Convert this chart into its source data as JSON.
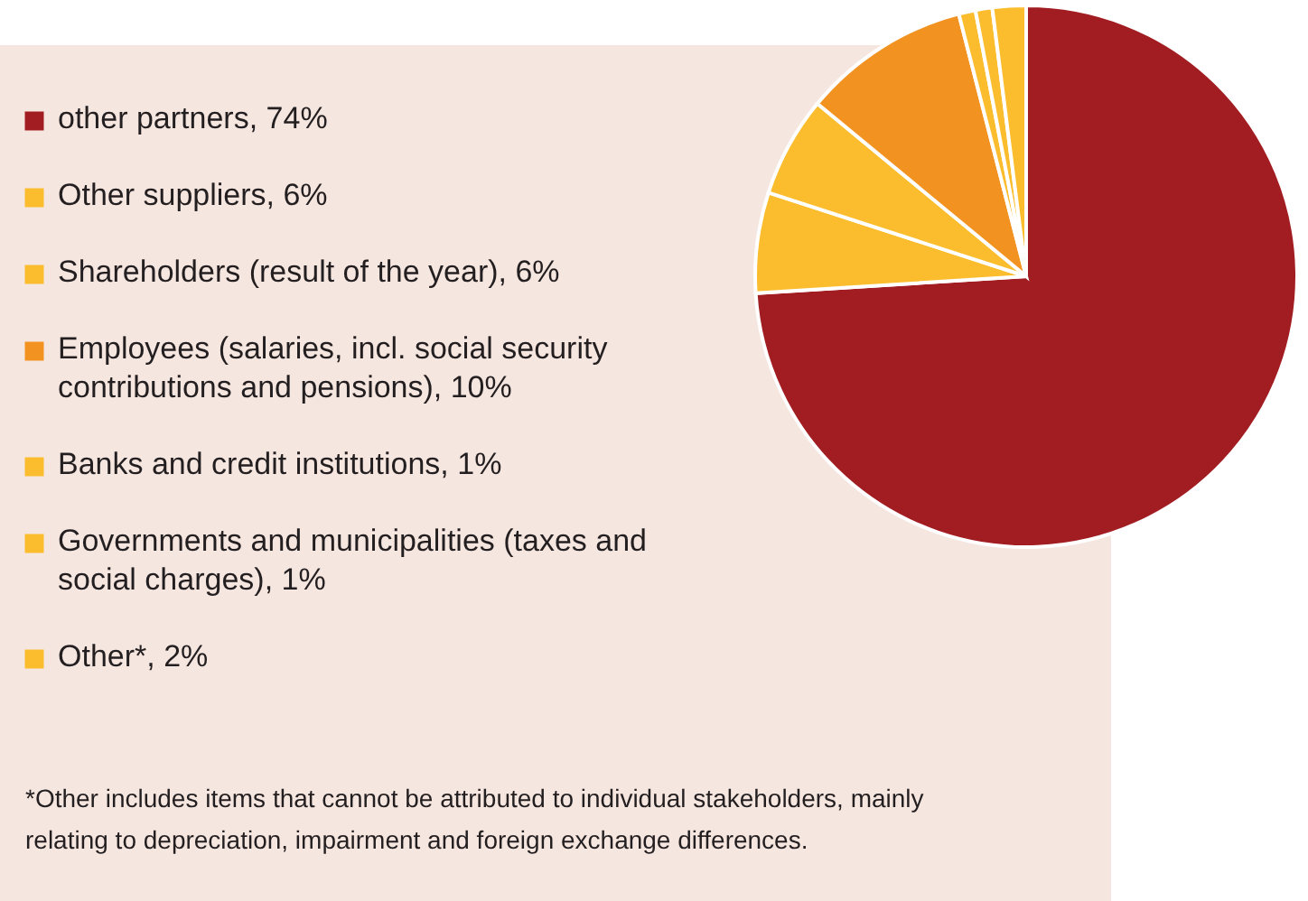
{
  "chart_data": {
    "type": "pie",
    "categories": [
      "other partners, 74%",
      "Other suppliers, 6%",
      "Shareholders (result of the year), 6%",
      "Employees (salaries, incl. social security contributions and pensions), 10%",
      "Banks and credit institutions, 1%",
      "Governments and municipalities (taxes and social charges), 1%",
      "Other*, 2%"
    ],
    "values": [
      74,
      6,
      6,
      10,
      1,
      1,
      2
    ],
    "legend": "left",
    "colors": [
      "#a21d21",
      "#fbbd2e",
      "#fbbd2e",
      "#f29221",
      "#fbbd2e",
      "#fbbd2e",
      "#fbbd2e"
    ],
    "annotations": [
      "*Other includes items that cannot be attributed to individual stakeholders, mainly relating to depreciation, impairment and foreign exchange differences."
    ]
  }
}
